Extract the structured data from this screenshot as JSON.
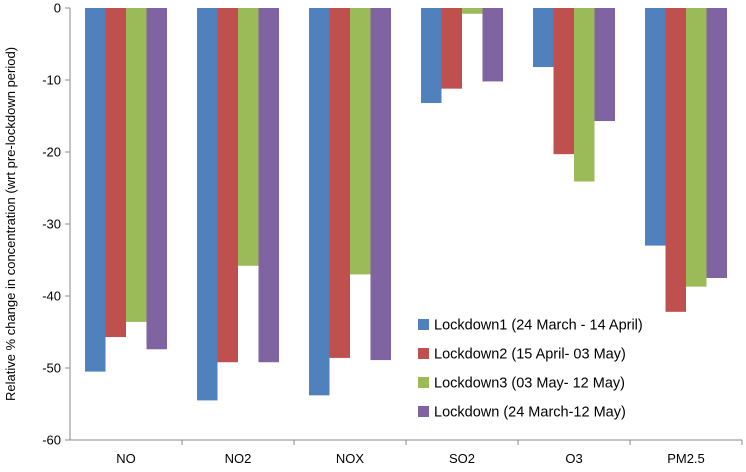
{
  "chart_data": {
    "type": "bar",
    "title": "",
    "xlabel": "",
    "ylabel": "Relative % change in concentration (wrt pre-lockdown period)",
    "ylim": [
      -60,
      0
    ],
    "ytick_step": 10,
    "grid": false,
    "legend_position": "bottom-right",
    "categories": [
      "NO",
      "NO2",
      "NOX",
      "SO2",
      "O3",
      "PM2.5"
    ],
    "series": [
      {
        "name": "Lockdown1 (24 March - 14 April)",
        "color": "#4F81BD",
        "values": [
          -50.5,
          -54.5,
          -53.8,
          -13.2,
          -8.2,
          -33.0
        ]
      },
      {
        "name": "Lockdown2 (15 April- 03 May)",
        "color": "#C0504D",
        "values": [
          -45.7,
          -49.2,
          -48.6,
          -11.2,
          -20.3,
          -42.2
        ]
      },
      {
        "name": "Lockdown3 (03 May- 12 May)",
        "color": "#9BBB59",
        "values": [
          -43.6,
          -35.8,
          -37.0,
          -0.8,
          -24.1,
          -38.7
        ]
      },
      {
        "name": "Lockdown (24 March-12 May)",
        "color": "#8064A2",
        "values": [
          -47.4,
          -49.2,
          -48.9,
          -10.2,
          -15.7,
          -37.5
        ]
      }
    ]
  }
}
